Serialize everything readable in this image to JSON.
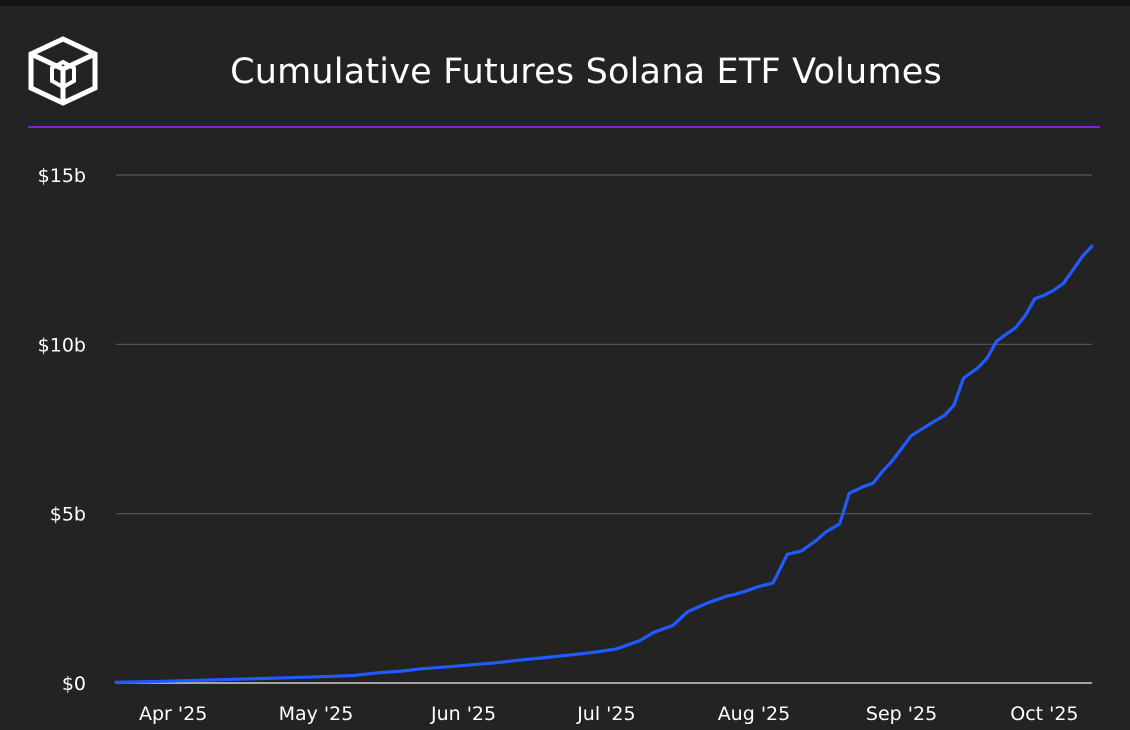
{
  "header": {
    "title": "Cumulative Futures Solana ETF Volumes",
    "logo_icon": "cube-logo-icon"
  },
  "colors": {
    "background": "#232323",
    "accent_line": "#8a1bd6",
    "series": "#1f5bff",
    "grid": "#5a5a5a"
  },
  "chart_data": {
    "type": "line",
    "title": "Cumulative Futures Solana ETF Volumes",
    "xlabel": "",
    "ylabel": "",
    "ylim": [
      0,
      15
    ],
    "y_unit": "billions USD",
    "yticks": [
      {
        "value": 0,
        "label": "$0"
      },
      {
        "value": 5,
        "label": "$5b"
      },
      {
        "value": 10,
        "label": "$10b"
      },
      {
        "value": 15,
        "label": "$15b"
      }
    ],
    "xlim": [
      0,
      205
    ],
    "x_unit": "days since 2025-03-17",
    "xticks": [
      {
        "value": 12,
        "label": "Apr '25"
      },
      {
        "value": 42,
        "label": "May '25"
      },
      {
        "value": 73,
        "label": "Jun '25"
      },
      {
        "value": 103,
        "label": "Jul '25"
      },
      {
        "value": 134,
        "label": "Aug '25"
      },
      {
        "value": 165,
        "label": "Sep '25"
      },
      {
        "value": 195,
        "label": "Oct '25"
      }
    ],
    "grid": true,
    "series": [
      {
        "name": "Cumulative Futures Solana ETF Volume",
        "x": [
          0,
          10,
          20,
          30,
          40,
          50,
          55,
          60,
          64,
          70,
          80,
          85,
          90,
          95,
          100,
          105,
          110,
          113,
          117,
          120,
          124,
          126,
          128,
          130,
          132,
          135,
          138,
          141,
          144,
          145,
          147,
          149,
          152,
          154,
          157,
          159,
          161,
          163,
          167,
          171,
          174,
          176,
          178,
          181,
          183,
          185,
          187,
          189,
          191,
          193,
          195,
          197,
          199,
          201,
          203,
          204,
          205
        ],
        "y": [
          0.02,
          0.05,
          0.09,
          0.13,
          0.17,
          0.22,
          0.3,
          0.35,
          0.42,
          0.48,
          0.6,
          0.68,
          0.75,
          0.82,
          0.9,
          1.0,
          1.25,
          1.5,
          1.7,
          2.1,
          2.35,
          2.45,
          2.55,
          2.62,
          2.7,
          2.85,
          2.95,
          3.8,
          3.9,
          4.0,
          4.2,
          4.45,
          4.7,
          5.6,
          5.8,
          5.9,
          6.25,
          6.55,
          7.3,
          7.65,
          7.9,
          8.2,
          9.0,
          9.3,
          9.6,
          10.1,
          10.3,
          10.5,
          10.85,
          11.35,
          11.45,
          11.6,
          11.8,
          12.2,
          12.6,
          12.75,
          12.9
        ]
      }
    ]
  }
}
